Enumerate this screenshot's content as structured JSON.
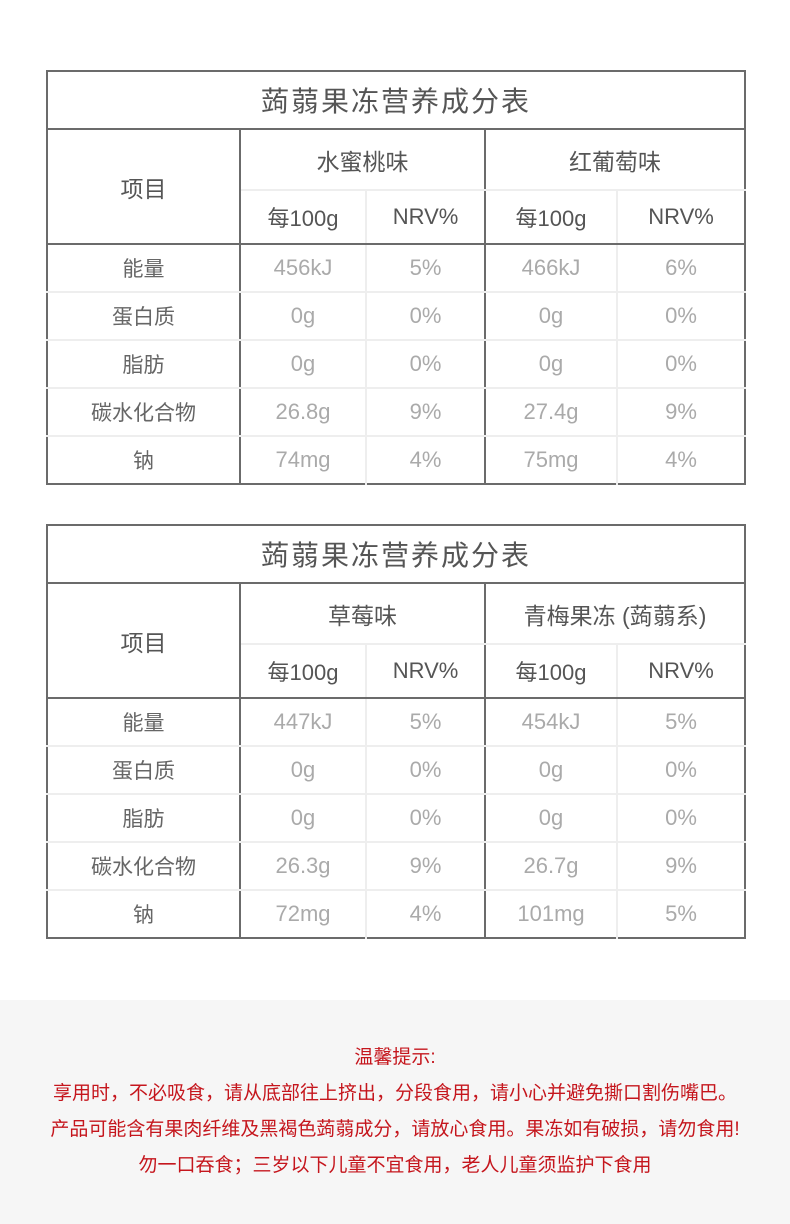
{
  "tables": [
    {
      "title": "蒟蒻果冻营养成分表",
      "item_header": "项目",
      "flavors": [
        "水蜜桃味",
        "红葡萄味"
      ],
      "sub_headers": [
        "每100g",
        "NRV%",
        "每100g",
        "NRV%"
      ],
      "rows": [
        {
          "label": "能量",
          "values": [
            "456kJ",
            "5%",
            "466kJ",
            "6%"
          ]
        },
        {
          "label": "蛋白质",
          "values": [
            "0g",
            "0%",
            "0g",
            "0%"
          ]
        },
        {
          "label": "脂肪",
          "values": [
            "0g",
            "0%",
            "0g",
            "0%"
          ]
        },
        {
          "label": "碳水化合物",
          "values": [
            "26.8g",
            "9%",
            "27.4g",
            "9%"
          ]
        },
        {
          "label": "钠",
          "values": [
            "74mg",
            "4%",
            "75mg",
            "4%"
          ]
        }
      ]
    },
    {
      "title": "蒟蒻果冻营养成分表",
      "item_header": "项目",
      "flavors": [
        "草莓味",
        "青梅果冻 (蒟蒻系)"
      ],
      "sub_headers": [
        "每100g",
        "NRV%",
        "每100g",
        "NRV%"
      ],
      "rows": [
        {
          "label": "能量",
          "values": [
            "447kJ",
            "5%",
            "454kJ",
            "5%"
          ]
        },
        {
          "label": "蛋白质",
          "values": [
            "0g",
            "0%",
            "0g",
            "0%"
          ]
        },
        {
          "label": "脂肪",
          "values": [
            "0g",
            "0%",
            "0g",
            "0%"
          ]
        },
        {
          "label": "碳水化合物",
          "values": [
            "26.3g",
            "9%",
            "26.7g",
            "9%"
          ]
        },
        {
          "label": "钠",
          "values": [
            "72mg",
            "4%",
            "101mg",
            "5%"
          ]
        }
      ]
    }
  ],
  "tips": {
    "heading": "温馨提示:",
    "lines": [
      "享用时，不必吸食，请从底部往上挤出，分段食用，请小心并避免撕口割伤嘴巴。",
      "产品可能含有果肉纤维及黑褐色蒟蒻成分，请放心食用。果冻如有破损，请勿食用!",
      "勿一口吞食；三岁以下儿童不宜食用，老人儿童须监护下食用"
    ],
    "color": "#c5161d"
  }
}
